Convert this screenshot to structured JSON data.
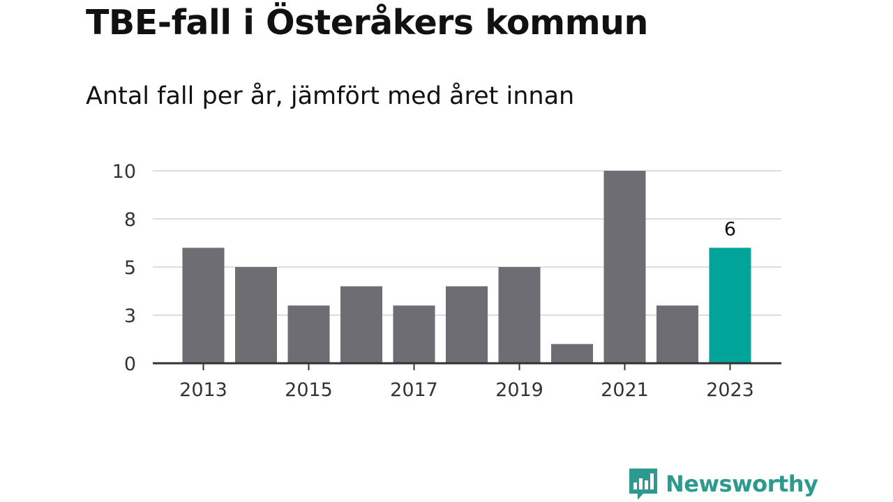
{
  "header": {
    "title": "TBE-fall i Österåkers kommun",
    "subtitle": "Antal fall per år, jämfört med året innan"
  },
  "chart_data": {
    "type": "bar",
    "title": "TBE-fall i Österåkers kommun",
    "subtitle": "Antal fall per år, jämfört med året innan",
    "categories": [
      "2013",
      "2014",
      "2015",
      "2016",
      "2017",
      "2018",
      "2019",
      "2020",
      "2021",
      "2022",
      "2023"
    ],
    "values": [
      6,
      5,
      3,
      4,
      3,
      4,
      5,
      1,
      10,
      3,
      6
    ],
    "x_tick_labels": [
      "2013",
      "2015",
      "2017",
      "2019",
      "2021",
      "2023"
    ],
    "y_ticks": [
      0,
      2.5,
      5,
      7.5,
      10
    ],
    "y_tick_labels": [
      "0",
      "3",
      "5",
      "8",
      "10"
    ],
    "ylim": [
      0,
      10
    ],
    "grid": true,
    "highlight_index": 10,
    "highlight_label": "6",
    "colors": {
      "bar": "#6e6d74",
      "highlight": "#00a499",
      "grid": "#dddddd",
      "axis": "#333333"
    }
  },
  "branding": {
    "name": "Newsworthy",
    "icon": "newsworthy-logo-icon",
    "color": "#2d9a90"
  }
}
